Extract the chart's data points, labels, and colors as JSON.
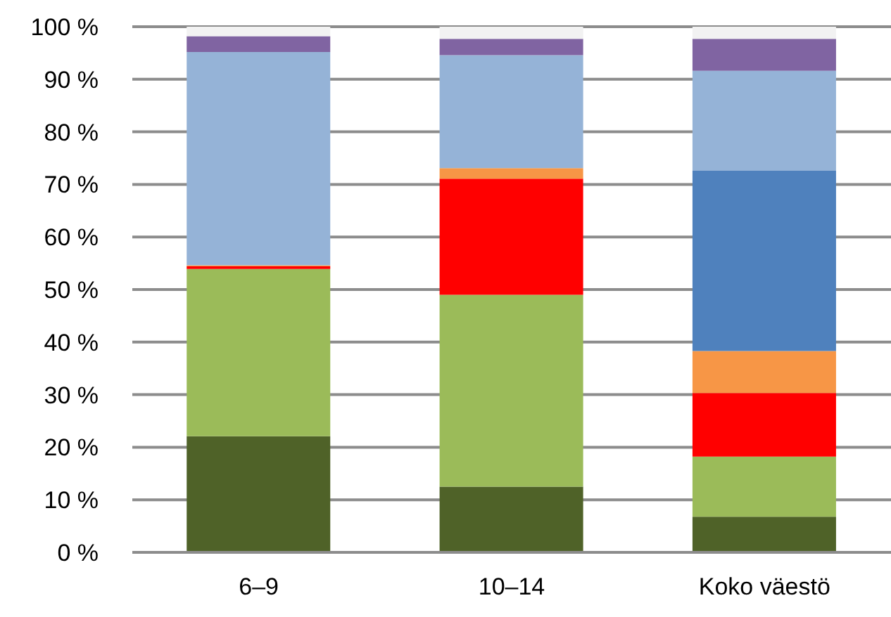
{
  "chart_data": {
    "type": "bar",
    "stacked": true,
    "categories": [
      "6–9",
      "10–14",
      "Koko väestö"
    ],
    "series": [
      {
        "color": "#4f6228",
        "values": [
          22.1,
          12.5,
          6.8
        ]
      },
      {
        "color": "#9bbb59",
        "values": [
          31.8,
          36.5,
          11.4
        ]
      },
      {
        "color": "#ff0000",
        "values": [
          0.5,
          22.1,
          12.1
        ]
      },
      {
        "color": "#f79646",
        "values": [
          0.2,
          2.0,
          8.0
        ]
      },
      {
        "color": "#4f81bd",
        "values": [
          0,
          0,
          34.3
        ]
      },
      {
        "color": "#95b3d7",
        "values": [
          40.6,
          21.5,
          19.0
        ]
      },
      {
        "color": "#8064a2",
        "values": [
          3.0,
          3.1,
          6.1
        ]
      },
      {
        "color": "#f2f2f2",
        "values": [
          1.8,
          2.3,
          2.3
        ]
      }
    ],
    "ylim": [
      0,
      100
    ],
    "yticks": [
      {
        "value": 0,
        "label": "0 %"
      },
      {
        "value": 10,
        "label": "10 %"
      },
      {
        "value": 20,
        "label": "20 %"
      },
      {
        "value": 30,
        "label": "30 %"
      },
      {
        "value": 40,
        "label": "40 %"
      },
      {
        "value": 50,
        "label": "50 %"
      },
      {
        "value": 60,
        "label": "60 %"
      },
      {
        "value": 70,
        "label": "70 %"
      },
      {
        "value": 80,
        "label": "80 %"
      },
      {
        "value": 90,
        "label": "90 %"
      },
      {
        "value": 100,
        "label": "100 %"
      }
    ],
    "grid": "y",
    "legend": false
  }
}
